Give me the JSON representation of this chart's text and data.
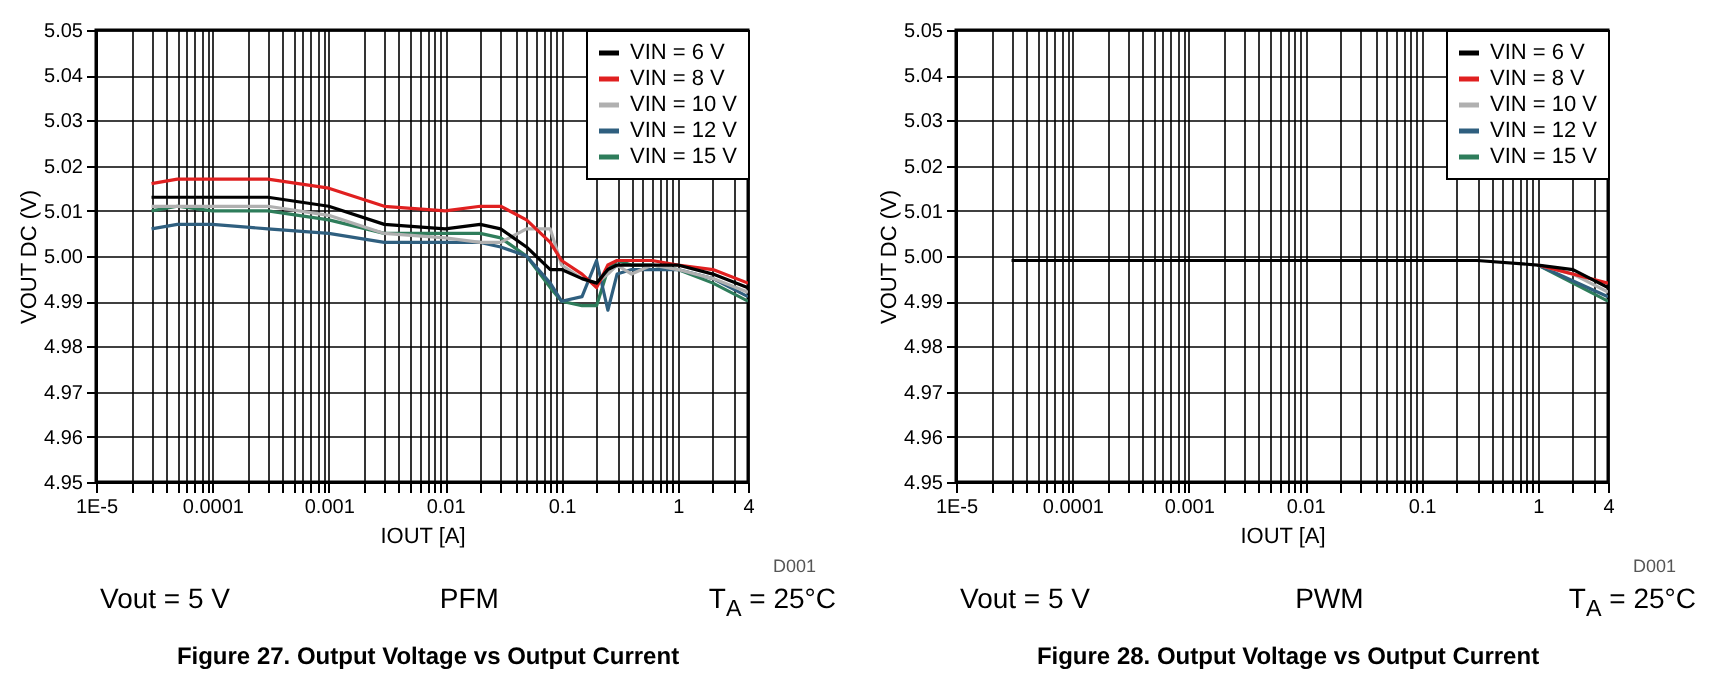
{
  "chart_data": [
    {
      "type": "line",
      "title": "Figure 27. Output Voltage vs Output Current",
      "xlabel": "IOUT [A]",
      "ylabel": "VOUT DC (V)",
      "log": "x",
      "grid": true,
      "legend": "top right",
      "annotations": [
        "D001",
        "Vout = 5 V",
        "PFM",
        "T$_{A}$ = 25°C"
      ],
      "xlim": [
        1e-05,
        4
      ],
      "ylim": [
        4.95,
        5.05
      ],
      "xticks": [
        {
          "value": 1e-05,
          "label": "1E-5"
        },
        {
          "value": 2e-05,
          "label": null
        },
        {
          "value": 3e-05,
          "label": null
        },
        {
          "value": 4e-05,
          "label": null
        },
        {
          "value": 5e-05,
          "label": null
        },
        {
          "value": 6e-05,
          "label": null
        },
        {
          "value": 7e-05,
          "label": null
        },
        {
          "value": 8e-05,
          "label": null
        },
        {
          "value": 9e-05,
          "label": null
        },
        0.0001,
        {
          "value": 0.0002,
          "label": null
        },
        {
          "value": 0.0003,
          "label": null
        },
        {
          "value": 0.0004,
          "label": null
        },
        {
          "value": 0.0005,
          "label": null
        },
        {
          "value": 0.0006,
          "label": null
        },
        {
          "value": 0.0007,
          "label": null
        },
        {
          "value": 0.0008,
          "label": null
        },
        {
          "value": 0.0009,
          "label": null
        },
        0.001,
        {
          "value": 0.002,
          "label": null
        },
        {
          "value": 0.003,
          "label": null
        },
        {
          "value": 0.004,
          "label": null
        },
        {
          "value": 0.005,
          "label": null
        },
        {
          "value": 0.006,
          "label": null
        },
        {
          "value": 0.007,
          "label": null
        },
        {
          "value": 0.008,
          "label": null
        },
        {
          "value": 0.009,
          "label": null
        },
        0.01,
        {
          "value": 0.02,
          "label": null
        },
        {
          "value": 0.03,
          "label": null
        },
        {
          "value": 0.04,
          "label": null
        },
        {
          "value": 0.05,
          "label": null
        },
        {
          "value": 0.06,
          "label": null
        },
        {
          "value": 0.07,
          "label": null
        },
        {
          "value": 0.08,
          "label": null
        },
        {
          "value": 0.09,
          "label": null
        },
        0.1,
        {
          "value": 0.2,
          "label": null
        },
        {
          "value": 0.3,
          "label": null
        },
        {
          "value": 0.4,
          "label": null
        },
        {
          "value": 0.5,
          "label": null
        },
        {
          "value": 0.6,
          "label": null
        },
        {
          "value": 0.7,
          "label": null
        },
        {
          "value": 0.8,
          "label": null
        },
        {
          "value": 0.9,
          "label": null
        },
        1,
        {
          "value": 2,
          "label": null
        },
        {
          "value": 3,
          "label": null
        },
        4
      ],
      "yticks": [
        4.95,
        4.96,
        4.97,
        4.98,
        4.99,
        {
          "value": 5,
          "label": "5.00"
        },
        5.01,
        5.02,
        5.03,
        5.04,
        5.05
      ],
      "x": [
        3e-05,
        5e-05,
        0.0001,
        0.0003,
        0.001,
        0.003,
        0.01,
        0.02,
        0.03,
        0.05,
        0.08,
        0.1,
        0.15,
        0.2,
        0.25,
        0.3,
        0.4,
        0.6,
        1,
        2,
        4
      ],
      "series": [
        {
          "name": "VIN = 6 V",
          "color": "#000000",
          "values": [
            5.013,
            5.013,
            5.013,
            5.013,
            5.011,
            5.007,
            5.006,
            5.007,
            5.006,
            5.002,
            4.997,
            4.997,
            4.995,
            4.994,
            4.997,
            4.998,
            4.998,
            4.998,
            4.998,
            4.996,
            4.993
          ]
        },
        {
          "name": "VIN = 8 V",
          "color": "#e02020",
          "values": [
            5.016,
            5.017,
            5.017,
            5.017,
            5.015,
            5.011,
            5.01,
            5.011,
            5.011,
            5.008,
            5.003,
            4.999,
            4.996,
            4.993,
            4.998,
            4.999,
            4.999,
            4.999,
            4.998,
            4.997,
            4.994
          ]
        },
        {
          "name": "VIN = 10 V",
          "color": "#b0b0b0",
          "values": [
            5.011,
            5.011,
            5.011,
            5.011,
            5.009,
            5.005,
            5.004,
            5.003,
            5.003,
            5.006,
            5.006,
            4.998,
            4.995,
            4.994,
            4.996,
            4.998,
            4.996,
            4.998,
            4.997,
            4.995,
            4.992
          ]
        },
        {
          "name": "VIN = 12 V",
          "color": "#2f5f7f",
          "values": [
            5.006,
            5.007,
            5.007,
            5.006,
            5.005,
            5.003,
            5.003,
            5.003,
            5.002,
            5.0,
            4.994,
            4.99,
            4.991,
            4.999,
            4.988,
            4.996,
            4.997,
            4.997,
            4.997,
            4.995,
            4.991
          ]
        },
        {
          "name": "VIN = 15 V",
          "color": "#2e7d5b",
          "values": [
            5.01,
            5.011,
            5.01,
            5.01,
            5.008,
            5.005,
            5.005,
            5.005,
            5.004,
            5.0,
            4.993,
            4.99,
            4.989,
            4.989,
            4.997,
            4.999,
            4.998,
            4.998,
            4.997,
            4.994,
            4.99
          ]
        }
      ]
    },
    {
      "type": "line",
      "title": "Figure 28. Output Voltage vs Output Current",
      "xlabel": "IOUT [A]",
      "ylabel": "VOUT DC (V)",
      "log": "x",
      "grid": true,
      "legend": "top right",
      "annotations": [
        "D001",
        "Vout = 5 V",
        "PWM",
        "T$_{A}$ = 25°C"
      ],
      "xlim": [
        1e-05,
        4
      ],
      "ylim": [
        4.95,
        5.05
      ],
      "xticks": [
        {
          "value": 1e-05,
          "label": "1E-5"
        },
        {
          "value": 2e-05,
          "label": null
        },
        {
          "value": 3e-05,
          "label": null
        },
        {
          "value": 4e-05,
          "label": null
        },
        {
          "value": 5e-05,
          "label": null
        },
        {
          "value": 6e-05,
          "label": null
        },
        {
          "value": 7e-05,
          "label": null
        },
        {
          "value": 8e-05,
          "label": null
        },
        {
          "value": 9e-05,
          "label": null
        },
        0.0001,
        {
          "value": 0.0002,
          "label": null
        },
        {
          "value": 0.0003,
          "label": null
        },
        {
          "value": 0.0004,
          "label": null
        },
        {
          "value": 0.0005,
          "label": null
        },
        {
          "value": 0.0006,
          "label": null
        },
        {
          "value": 0.0007,
          "label": null
        },
        {
          "value": 0.0008,
          "label": null
        },
        {
          "value": 0.0009,
          "label": null
        },
        0.001,
        {
          "value": 0.002,
          "label": null
        },
        {
          "value": 0.003,
          "label": null
        },
        {
          "value": 0.004,
          "label": null
        },
        {
          "value": 0.005,
          "label": null
        },
        {
          "value": 0.006,
          "label": null
        },
        {
          "value": 0.007,
          "label": null
        },
        {
          "value": 0.008,
          "label": null
        },
        {
          "value": 0.009,
          "label": null
        },
        0.01,
        {
          "value": 0.02,
          "label": null
        },
        {
          "value": 0.03,
          "label": null
        },
        {
          "value": 0.04,
          "label": null
        },
        {
          "value": 0.05,
          "label": null
        },
        {
          "value": 0.06,
          "label": null
        },
        {
          "value": 0.07,
          "label": null
        },
        {
          "value": 0.08,
          "label": null
        },
        {
          "value": 0.09,
          "label": null
        },
        0.1,
        {
          "value": 0.2,
          "label": null
        },
        {
          "value": 0.3,
          "label": null
        },
        {
          "value": 0.4,
          "label": null
        },
        {
          "value": 0.5,
          "label": null
        },
        {
          "value": 0.6,
          "label": null
        },
        {
          "value": 0.7,
          "label": null
        },
        {
          "value": 0.8,
          "label": null
        },
        {
          "value": 0.9,
          "label": null
        },
        1,
        {
          "value": 2,
          "label": null
        },
        {
          "value": 3,
          "label": null
        },
        4
      ],
      "yticks": [
        4.95,
        4.96,
        4.97,
        4.98,
        4.99,
        {
          "value": 5,
          "label": "5.00"
        },
        5.01,
        5.02,
        5.03,
        5.04,
        5.05
      ],
      "x": [
        3e-05,
        0.0001,
        0.001,
        0.01,
        0.1,
        0.3,
        1,
        2,
        4
      ],
      "series": [
        {
          "name": "VIN = 6 V",
          "color": "#000000",
          "values": [
            4.999,
            4.999,
            4.999,
            4.999,
            4.999,
            4.999,
            4.998,
            4.997,
            4.993
          ]
        },
        {
          "name": "VIN = 8 V",
          "color": "#e02020",
          "values": [
            null,
            null,
            null,
            null,
            null,
            null,
            4.998,
            null,
            4.994
          ]
        },
        {
          "name": "VIN = 10 V",
          "color": "#b0b0b0",
          "values": [
            null,
            null,
            null,
            null,
            null,
            null,
            4.998,
            4.996,
            4.992
          ]
        },
        {
          "name": "VIN = 12 V",
          "color": "#2f5f7f",
          "values": [
            null,
            null,
            null,
            null,
            null,
            null,
            4.998,
            null,
            4.991
          ]
        },
        {
          "name": "VIN = 15 V",
          "color": "#2e7d5b",
          "values": [
            null,
            null,
            null,
            null,
            null,
            null,
            4.998,
            null,
            4.99
          ]
        }
      ]
    }
  ]
}
